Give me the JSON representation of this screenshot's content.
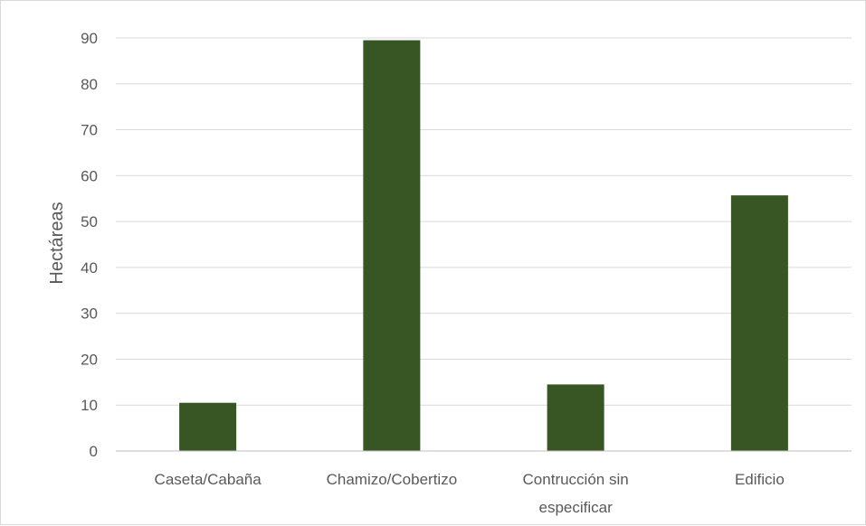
{
  "chart_data": {
    "type": "bar",
    "title": "",
    "xlabel": "",
    "ylabel": "Hectáreas",
    "categories": [
      [
        "Caseta/Cabaña"
      ],
      [
        "Chamizo/Cobertizo"
      ],
      [
        "Contrucción sin",
        "especificar"
      ],
      [
        "Edificio"
      ]
    ],
    "values": [
      10.5,
      89.5,
      14.5,
      55.7
    ],
    "ylim": [
      0,
      90
    ],
    "yticks": [
      0,
      10,
      20,
      30,
      40,
      50,
      60,
      70,
      80,
      90
    ],
    "grid": true,
    "legend": "none",
    "bar_color": "#375623",
    "grid_color": "#d9d9d9",
    "axis_color": "#bfbfbf"
  }
}
